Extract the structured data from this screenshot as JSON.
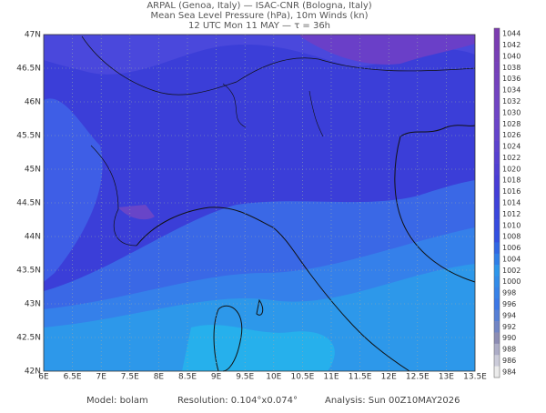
{
  "header": {
    "line1": "ARPAL (Genoa, Italy)  —  ISAC-CNR (Bologna, Italy)",
    "line2": "Mean Sea Level Pressure (hPa), 10m Winds (kn)",
    "line3": "12 UTC Mon 11 MAY  —  τ = 36h"
  },
  "map": {
    "lat_labels": [
      "47N",
      "46.5N",
      "46N",
      "45.5N",
      "45N",
      "44.5N",
      "44N",
      "43.5N",
      "43N",
      "42.5N",
      "42N"
    ],
    "lon_labels": [
      "6E",
      "6.5E",
      "7E",
      "7.5E",
      "8E",
      "8.5E",
      "9E",
      "9.5E",
      "10E",
      "10.5E",
      "11E",
      "11.5E",
      "12E",
      "12.5E",
      "13E",
      "13.5E"
    ]
  },
  "colorbar": {
    "labels": [
      1044,
      1042,
      1040,
      1038,
      1036,
      1034,
      1032,
      1030,
      1028,
      1026,
      1024,
      1022,
      1020,
      1018,
      1016,
      1014,
      1012,
      1010,
      1008,
      1006,
      1004,
      1002,
      1000,
      998,
      996,
      994,
      992,
      990,
      988,
      986,
      984
    ]
  },
  "footer": {
    "model": "Model: bolam",
    "resolution": "Resolution: 0.104°x0.074°",
    "analysis": "Analysis: Sun 00Z10MAY2026"
  }
}
